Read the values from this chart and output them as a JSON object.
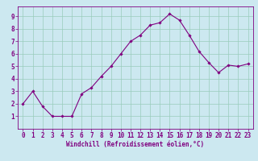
{
  "x": [
    0,
    1,
    2,
    3,
    4,
    5,
    6,
    7,
    8,
    9,
    10,
    11,
    12,
    13,
    14,
    15,
    16,
    17,
    18,
    19,
    20,
    21,
    22,
    23
  ],
  "y": [
    2.0,
    3.0,
    1.8,
    1.0,
    1.0,
    1.0,
    2.8,
    3.3,
    4.2,
    5.0,
    6.0,
    7.0,
    7.5,
    8.3,
    8.5,
    9.2,
    8.7,
    7.5,
    6.2,
    5.3,
    4.5,
    5.1,
    5.0,
    5.2
  ],
  "line_color": "#800080",
  "marker": "D",
  "markersize": 1.8,
  "linewidth": 0.8,
  "bg_color": "#cce8f0",
  "grid_color": "#99ccbb",
  "xlabel": "Windchill (Refroidissement éolien,°C)",
  "xlabel_fontsize": 5.5,
  "tick_fontsize": 5.5,
  "xlim": [
    -0.5,
    23.5
  ],
  "ylim": [
    0,
    9.8
  ],
  "yticks": [
    1,
    2,
    3,
    4,
    5,
    6,
    7,
    8,
    9
  ],
  "xticks": [
    0,
    1,
    2,
    3,
    4,
    5,
    6,
    7,
    8,
    9,
    10,
    11,
    12,
    13,
    14,
    15,
    16,
    17,
    18,
    19,
    20,
    21,
    22,
    23
  ]
}
